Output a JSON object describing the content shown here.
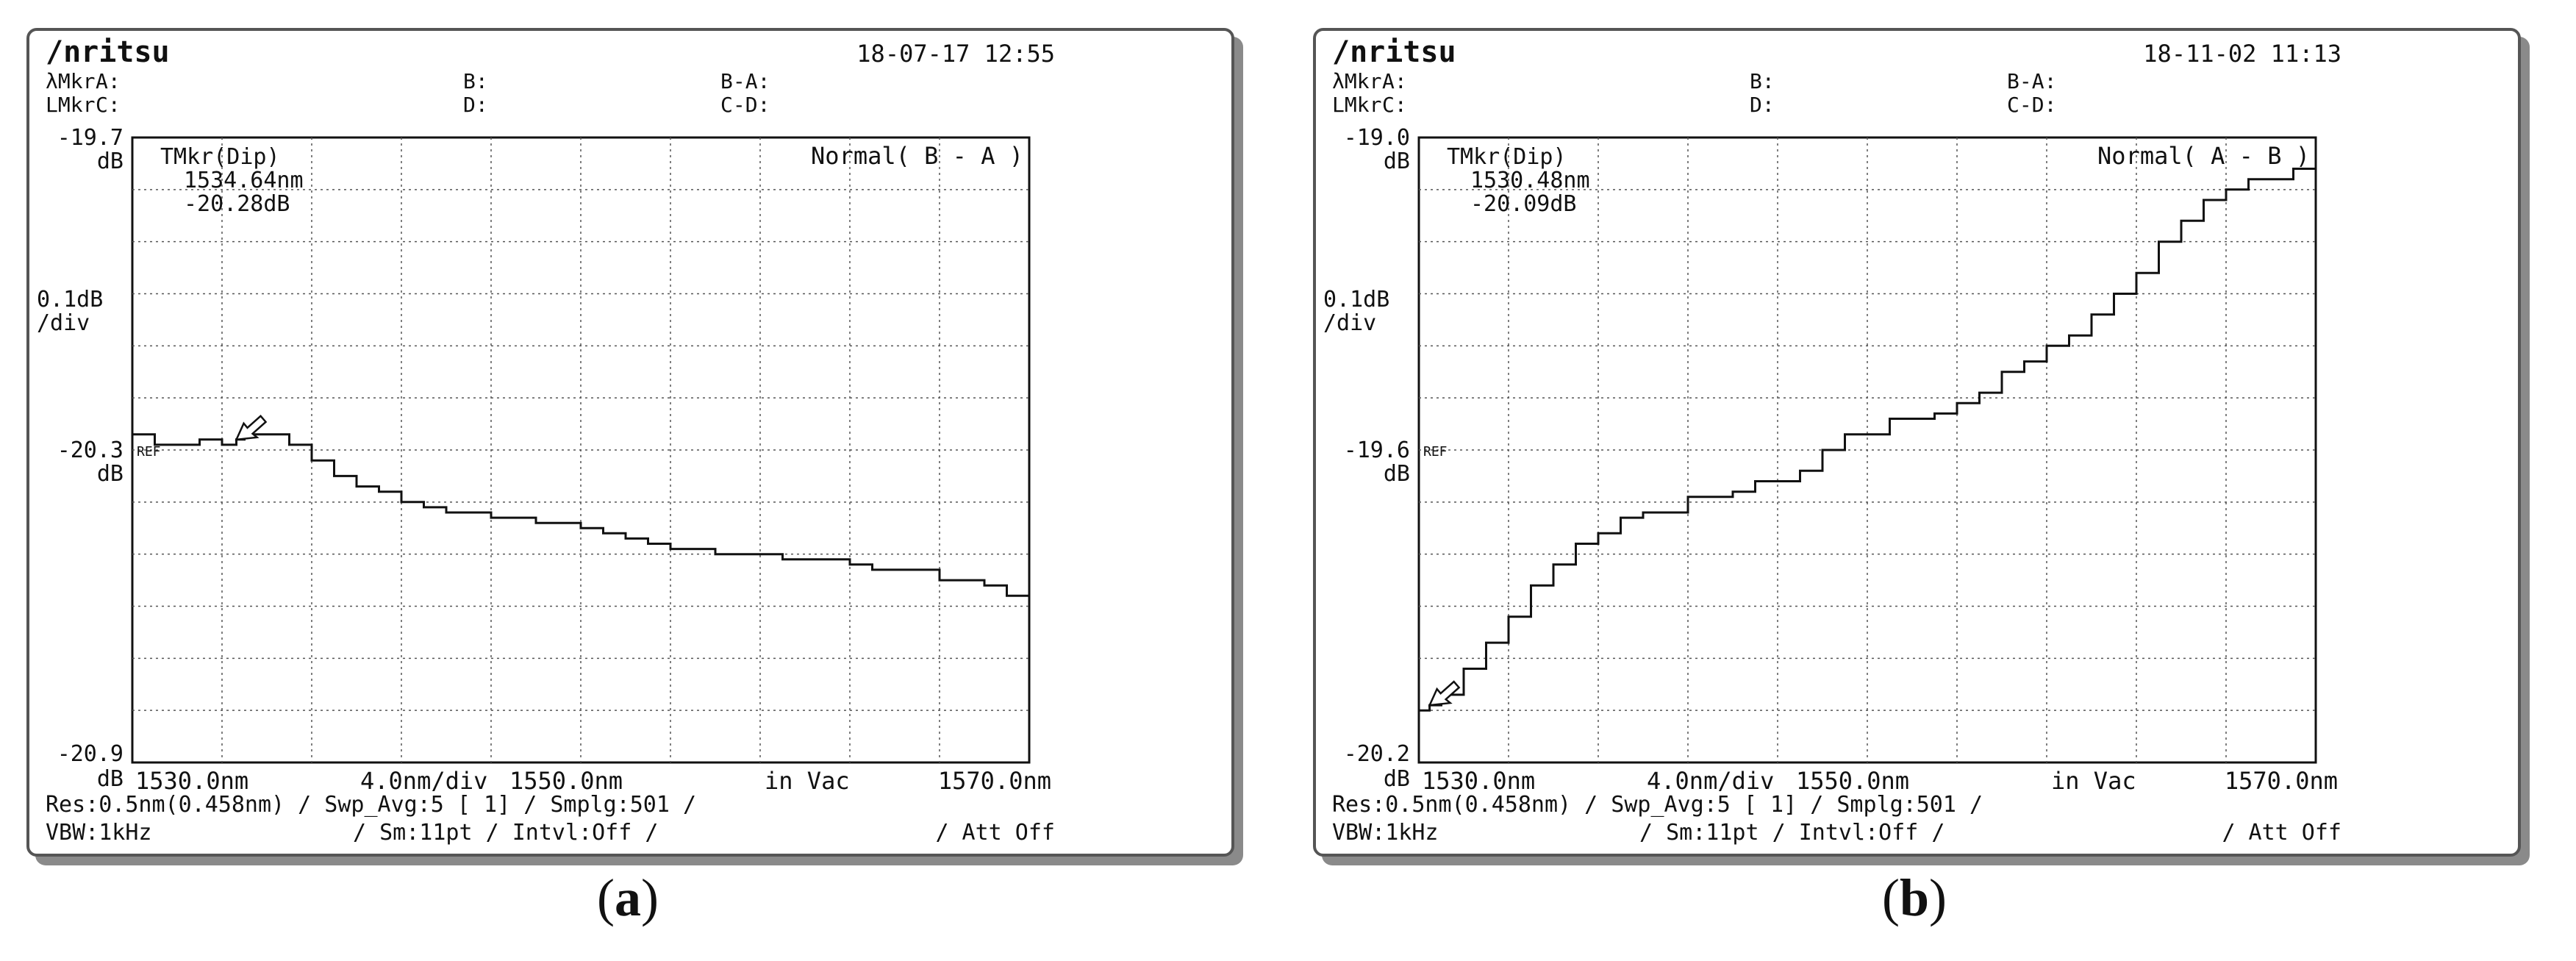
{
  "panels": [
    {
      "id": "a",
      "logo": "/nritsu",
      "datetime": "18-07-17 12:55",
      "markers": {
        "lmkr_label": "λMkr",
        "a": "A:",
        "b": "B:",
        "bma": "B-A:",
        "lmkr2_label": "LMkr",
        "c": "C:",
        "d": "D:",
        "cmd": "C-D:"
      },
      "tmkr": {
        "label": "TMkr(Dip)",
        "wavelength": "1534.64nm",
        "level": "-20.28dB"
      },
      "mode": "Normal( B - A )",
      "y_top": "-19.7",
      "y_top_unit": "dB",
      "scale": "0.1dB",
      "scale_unit": "/div",
      "ref_level": "-20.3",
      "ref_unit": "dB",
      "ref_tag": "REF",
      "y_bottom": "-20.9",
      "y_bottom_unit": "dB",
      "x_start": "1530.0nm",
      "x_div": "4.0nm/div",
      "x_center": "1550.0nm",
      "x_medium": "in Vac",
      "x_stop": "1570.0nm",
      "status1": "Res:0.5nm(0.458nm)   / Swp_Avg:5    [   1] /  Smplg:501   /",
      "status2": "VBW:1kHz",
      "status3": "/ Sm:11pt / Intvl:Off    /",
      "status4": "/ Att Off"
    },
    {
      "id": "b",
      "logo": "/nritsu",
      "datetime": "18-11-02 11:13",
      "markers": {
        "lmkr_label": "λMkr",
        "a": "A:",
        "b": "B:",
        "bma": "B-A:",
        "lmkr2_label": "LMkr",
        "c": "C:",
        "d": "D:",
        "cmd": "C-D:"
      },
      "tmkr": {
        "label": "TMkr(Dip)",
        "wavelength": "1530.48nm",
        "level": "-20.09dB"
      },
      "mode": "Normal( A - B )",
      "y_top": "-19.0",
      "y_top_unit": "dB",
      "scale": "0.1dB",
      "scale_unit": "/div",
      "ref_level": "-19.6",
      "ref_unit": "dB",
      "ref_tag": "REF",
      "y_bottom": "-20.2",
      "y_bottom_unit": "dB",
      "x_start": "1530.0nm",
      "x_div": "4.0nm/div",
      "x_center": "1550.0nm",
      "x_medium": "in Vac",
      "x_stop": "1570.0nm",
      "status1": "Res:0.5nm(0.458nm)   / Swp_Avg:5    [   1] /  Smplg:501   /",
      "status2": "VBW:1kHz",
      "status3": "/ Sm:11pt / Intvl:Off    /",
      "status4": "/ Att Off"
    }
  ],
  "captions": {
    "a": "(a)",
    "b": "(b)"
  },
  "chart_data": [
    {
      "type": "line",
      "title": "",
      "xlabel": "",
      "ylabel": "",
      "xlim": [
        1530,
        1570
      ],
      "ylim": [
        -20.9,
        -19.7
      ],
      "grid": true,
      "x": [
        1530,
        1531,
        1532,
        1533,
        1534,
        1534.64,
        1535,
        1536,
        1537,
        1538,
        1539,
        1540,
        1541,
        1542,
        1543,
        1544,
        1545,
        1546,
        1547,
        1548,
        1549,
        1550,
        1551,
        1552,
        1553,
        1554,
        1555,
        1556,
        1557,
        1558,
        1559,
        1560,
        1561,
        1562,
        1563,
        1564,
        1565,
        1566,
        1567,
        1568,
        1569,
        1570
      ],
      "values": [
        -20.27,
        -20.29,
        -20.29,
        -20.28,
        -20.29,
        -20.28,
        -20.27,
        -20.27,
        -20.29,
        -20.32,
        -20.35,
        -20.37,
        -20.38,
        -20.4,
        -20.41,
        -20.42,
        -20.42,
        -20.43,
        -20.43,
        -20.44,
        -20.44,
        -20.45,
        -20.46,
        -20.47,
        -20.48,
        -20.49,
        -20.49,
        -20.5,
        -20.5,
        -20.5,
        -20.51,
        -20.51,
        -20.51,
        -20.52,
        -20.53,
        -20.53,
        -20.53,
        -20.55,
        -20.55,
        -20.56,
        -20.58,
        -20.58
      ]
    },
    {
      "type": "line",
      "title": "",
      "xlabel": "",
      "ylabel": "",
      "xlim": [
        1530,
        1570
      ],
      "ylim": [
        -20.2,
        -19.0
      ],
      "grid": true,
      "x": [
        1530,
        1530.48,
        1531,
        1532,
        1533,
        1534,
        1535,
        1536,
        1537,
        1538,
        1539,
        1540,
        1541,
        1542,
        1543,
        1544,
        1545,
        1546,
        1547,
        1548,
        1549,
        1550,
        1551,
        1552,
        1553,
        1554,
        1555,
        1556,
        1557,
        1558,
        1559,
        1560,
        1561,
        1562,
        1563,
        1564,
        1565,
        1566,
        1567,
        1568,
        1569,
        1570
      ],
      "values": [
        -20.1,
        -20.09,
        -20.07,
        -20.02,
        -19.97,
        -19.92,
        -19.86,
        -19.82,
        -19.78,
        -19.76,
        -19.73,
        -19.72,
        -19.72,
        -19.69,
        -19.69,
        -19.68,
        -19.66,
        -19.66,
        -19.64,
        -19.6,
        -19.57,
        -19.57,
        -19.54,
        -19.54,
        -19.53,
        -19.51,
        -19.49,
        -19.45,
        -19.43,
        -19.4,
        -19.38,
        -19.34,
        -19.3,
        -19.26,
        -19.2,
        -19.16,
        -19.12,
        -19.1,
        -19.08,
        -19.08,
        -19.06,
        -19.03
      ]
    }
  ]
}
